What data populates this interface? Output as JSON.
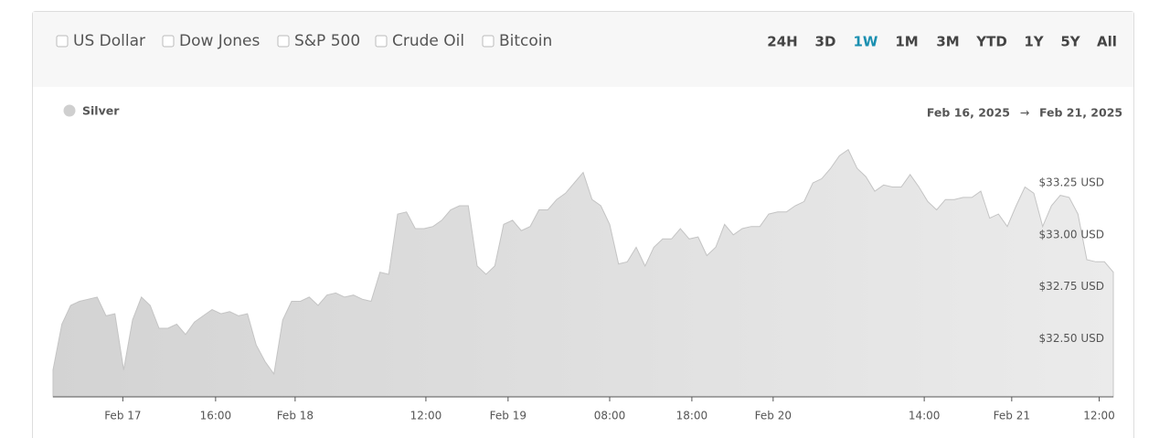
{
  "filters": [
    "US Dollar",
    "Dow Jones",
    "S&P 500",
    "Crude Oil",
    "Bitcoin"
  ],
  "ranges": [
    "24H",
    "3D",
    "1W",
    "1M",
    "3M",
    "YTD",
    "1Y",
    "5Y",
    "All"
  ],
  "active_range": "1W",
  "date_range": {
    "start": "Feb 16, 2025",
    "end": "Feb 21, 2025"
  },
  "chart_data": {
    "type": "area",
    "x": [
      0,
      1,
      2,
      3,
      4,
      5,
      6,
      7,
      8,
      9,
      10,
      11,
      12,
      13,
      14,
      15,
      16,
      17,
      18,
      19,
      20,
      21,
      22,
      23,
      24,
      25,
      26,
      27,
      28,
      29,
      30,
      31,
      32,
      33,
      34,
      35,
      36,
      37,
      38,
      39,
      40,
      41,
      42,
      43,
      44,
      45,
      46,
      47,
      48,
      49,
      50,
      51,
      52,
      53,
      54,
      55,
      56,
      57,
      58,
      59,
      60,
      61,
      62,
      63,
      64,
      65,
      66,
      67,
      68,
      69,
      70,
      71,
      72,
      73,
      74,
      75,
      76,
      77,
      78,
      79,
      80,
      81,
      82,
      83,
      84,
      85,
      86,
      87,
      88,
      89,
      90,
      91,
      92,
      93,
      94,
      95,
      96,
      97,
      98,
      99,
      100,
      101,
      102,
      103,
      104,
      105,
      106,
      107,
      108,
      109,
      110,
      111,
      112,
      113,
      114,
      115,
      116,
      117,
      118,
      119,
      120
    ],
    "series": [
      {
        "name": "Silver",
        "color": "#cfcfcf",
        "values": [
          32.35,
          32.57,
          32.66,
          32.68,
          32.69,
          32.7,
          32.61,
          32.62,
          32.35,
          32.59,
          32.7,
          32.66,
          32.55,
          32.55,
          32.57,
          32.52,
          32.58,
          32.61,
          32.64,
          32.62,
          32.63,
          32.61,
          32.62,
          32.47,
          32.39,
          32.33,
          32.59,
          32.68,
          32.68,
          32.7,
          32.66,
          32.71,
          32.72,
          32.7,
          32.71,
          32.69,
          32.68,
          32.82,
          32.81,
          33.1,
          33.11,
          33.03,
          33.03,
          33.04,
          33.07,
          33.12,
          33.14,
          33.14,
          32.85,
          32.81,
          32.85,
          33.05,
          33.07,
          33.02,
          33.04,
          33.12,
          33.12,
          33.17,
          33.2,
          33.25,
          33.3,
          33.17,
          33.14,
          33.05,
          32.86,
          32.87,
          32.94,
          32.85,
          32.94,
          32.98,
          32.98,
          33.03,
          32.98,
          32.99,
          32.9,
          32.94,
          33.05,
          33.0,
          33.03,
          33.04,
          33.04,
          33.1,
          33.11,
          33.11,
          33.14,
          33.16,
          33.25,
          33.27,
          33.32,
          33.38,
          33.41,
          33.32,
          33.28,
          33.21,
          33.24,
          33.23,
          33.23,
          33.29,
          33.23,
          33.16,
          33.12,
          33.17,
          33.17,
          33.18,
          33.18,
          33.21,
          33.08,
          33.1,
          33.04,
          33.14,
          33.23,
          33.2,
          33.04,
          33.14,
          33.19,
          33.18,
          33.1,
          32.88,
          32.87,
          32.87,
          32.82
        ]
      }
    ],
    "xlim": [
      0,
      120
    ],
    "xticks": [
      {
        "value": 7.9,
        "label": "Feb 17"
      },
      {
        "value": 18.4,
        "label": "16:00"
      },
      {
        "value": 27.4,
        "label": "Feb 18"
      },
      {
        "value": 42.2,
        "label": "12:00"
      },
      {
        "value": 51.5,
        "label": "Feb 19"
      },
      {
        "value": 63,
        "label": "08:00"
      },
      {
        "value": 72.3,
        "label": "18:00"
      },
      {
        "value": 81.5,
        "label": "Feb 20"
      },
      {
        "value": 98.6,
        "label": "14:00"
      },
      {
        "value": 108.5,
        "label": "Feb 21"
      },
      {
        "value": 118.4,
        "label": "12:00"
      }
    ],
    "ylim": [
      32.22,
      33.47
    ],
    "yticks": [
      {
        "value": 32.5,
        "label": "$32.50 USD"
      },
      {
        "value": 32.75,
        "label": "$32.75 USD"
      },
      {
        "value": 33,
        "label": "$33.00 USD"
      },
      {
        "value": 33.25,
        "label": "$33.25 USD"
      }
    ],
    "grid": false
  }
}
